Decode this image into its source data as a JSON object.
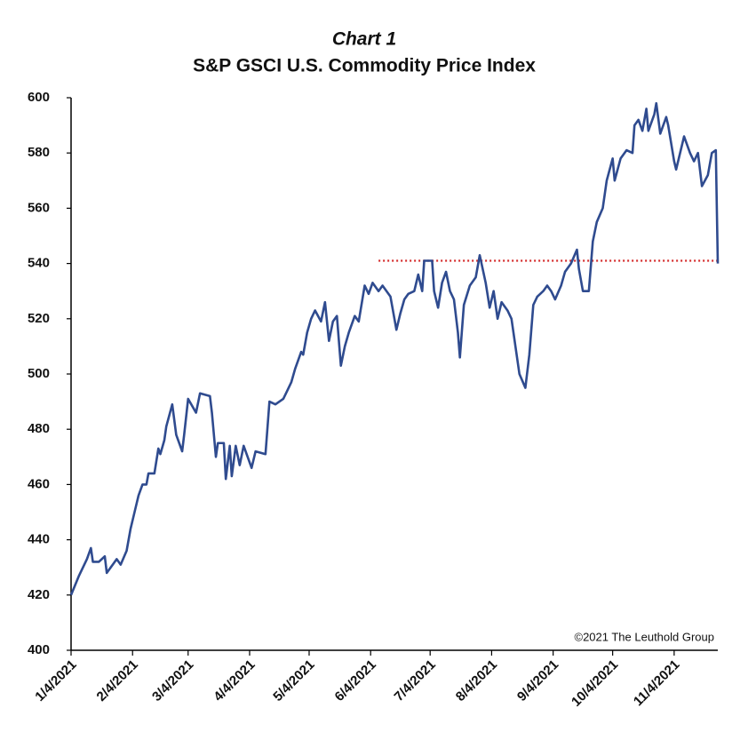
{
  "chart_data": {
    "type": "line",
    "title": "Chart 1",
    "subtitle": "S&P GSCI U.S. Commodity Price Index",
    "annotation": "©2021 The Leuthold Group",
    "x": [
      "1/4/2021",
      "1/8/2021",
      "1/12/2021",
      "1/14/2021",
      "1/15/2021",
      "1/18/2021",
      "1/21/2021",
      "1/22/2021",
      "1/25/2021",
      "1/27/2021",
      "1/29/2021",
      "2/1/2021",
      "2/3/2021",
      "2/5/2021",
      "2/7/2021",
      "2/9/2021",
      "2/11/2021",
      "2/12/2021",
      "2/15/2021",
      "2/17/2021",
      "2/18/2021",
      "2/20/2021",
      "2/21/2021",
      "2/24/2021",
      "2/26/2021",
      "3/1/2021",
      "3/2/2021",
      "3/4/2021",
      "3/8/2021",
      "3/10/2021",
      "3/15/2021",
      "3/16/2021",
      "3/18/2021",
      "3/19/2021",
      "3/22/2021",
      "3/23/2021",
      "3/25/2021",
      "3/26/2021",
      "3/28/2021",
      "3/30/2021",
      "4/1/2021",
      "4/5/2021",
      "4/7/2021",
      "4/12/2021",
      "4/14/2021",
      "4/17/2021",
      "4/21/2021",
      "4/23/2021",
      "4/25/2021",
      "4/27/2021",
      "4/30/2021",
      "5/1/2021",
      "5/3/2021",
      "5/5/2021",
      "5/7/2021",
      "5/10/2021",
      "5/12/2021",
      "5/14/2021",
      "5/16/2021",
      "5/18/2021",
      "5/20/2021",
      "5/22/2021",
      "5/24/2021",
      "5/27/2021",
      "5/29/2021",
      "6/1/2021",
      "6/3/2021",
      "6/5/2021",
      "6/8/2021",
      "6/10/2021",
      "6/14/2021",
      "6/17/2021",
      "6/19/2021",
      "6/21/2021",
      "6/23/2021",
      "6/26/2021",
      "6/28/2021",
      "6/30/2021",
      "7/1/2021",
      "7/5/2021",
      "7/6/2021",
      "7/8/2021",
      "7/10/2021",
      "7/12/2021",
      "7/14/2021",
      "7/16/2021",
      "7/18/2021",
      "7/19/2021",
      "7/21/2021",
      "7/24/2021",
      "7/27/2021",
      "7/29/2021",
      "8/1/2021",
      "8/3/2021",
      "8/5/2021",
      "8/7/2021",
      "8/9/2021",
      "8/12/2021",
      "8/14/2021",
      "8/16/2021",
      "8/18/2021",
      "8/21/2021",
      "8/23/2021",
      "8/25/2021",
      "8/27/2021",
      "8/30/2021",
      "9/1/2021",
      "9/3/2021",
      "9/5/2021",
      "9/8/2021",
      "9/10/2021",
      "9/13/2021",
      "9/16/2021",
      "9/17/2021",
      "9/19/2021",
      "9/22/2021",
      "9/24/2021",
      "9/26/2021",
      "9/29/2021",
      "10/1/2021",
      "10/4/2021",
      "10/5/2021",
      "10/8/2021",
      "10/11/2021",
      "10/14/2021",
      "10/15/2021",
      "10/17/2021",
      "10/19/2021",
      "10/21/2021",
      "10/22/2021",
      "10/25/2021",
      "10/26/2021",
      "10/28/2021",
      "10/31/2021",
      "11/1/2021",
      "11/4/2021",
      "11/5/2021",
      "11/7/2021",
      "11/9/2021",
      "11/12/2021",
      "11/14/2021",
      "11/16/2021",
      "11/18/2021",
      "11/21/2021",
      "11/23/2021",
      "11/25/2021",
      "11/26/2021"
    ],
    "series": [
      {
        "color": "#2f4b8f",
        "values": [
          420,
          427,
          433,
          437,
          432,
          432,
          434,
          428,
          431,
          433,
          431,
          436,
          444,
          450,
          456,
          460,
          460,
          464,
          464,
          473,
          471,
          476,
          481,
          489,
          478,
          472,
          478,
          491,
          486,
          493,
          492,
          486,
          470,
          475,
          475,
          462,
          474,
          463,
          474,
          467,
          474,
          466,
          472,
          471,
          490,
          489,
          491,
          494,
          497,
          502,
          508,
          507,
          515,
          520,
          523,
          519,
          526,
          512,
          519,
          521,
          503,
          510,
          515,
          521,
          519,
          532,
          529,
          533,
          530,
          532,
          528,
          516,
          522,
          527,
          529,
          530,
          536,
          530,
          541,
          541,
          530,
          524,
          533,
          537,
          530,
          527,
          515,
          506,
          525,
          532,
          535,
          543,
          533,
          524,
          530,
          520,
          526,
          523,
          520,
          510,
          500,
          495,
          507,
          525,
          528,
          530,
          532,
          530,
          527,
          532,
          537,
          540,
          545,
          538,
          530,
          530,
          548,
          555,
          560,
          570,
          578,
          570,
          578,
          581,
          580,
          590,
          592,
          588,
          596,
          588,
          594,
          598,
          587,
          593,
          590,
          577,
          574,
          580,
          586,
          580,
          577,
          580,
          568,
          572,
          580,
          581,
          540
        ]
      }
    ],
    "reference": {
      "value": 541,
      "x": [
        "6/8/2021",
        "11/26/2021"
      ],
      "color": "#d42a2a"
    },
    "xlim": [
      "1/4/2021",
      "11/26/2021"
    ],
    "xticks": [
      "1/4/2021",
      "2/4/2021",
      "3/4/2021",
      "4/4/2021",
      "5/4/2021",
      "6/4/2021",
      "7/4/2021",
      "8/4/2021",
      "9/4/2021",
      "10/4/2021",
      "11/4/2021"
    ],
    "ylim": [
      400,
      600
    ],
    "yticks": [
      400,
      420,
      440,
      460,
      480,
      500,
      520,
      540,
      560,
      580,
      600
    ],
    "grid": false
  }
}
